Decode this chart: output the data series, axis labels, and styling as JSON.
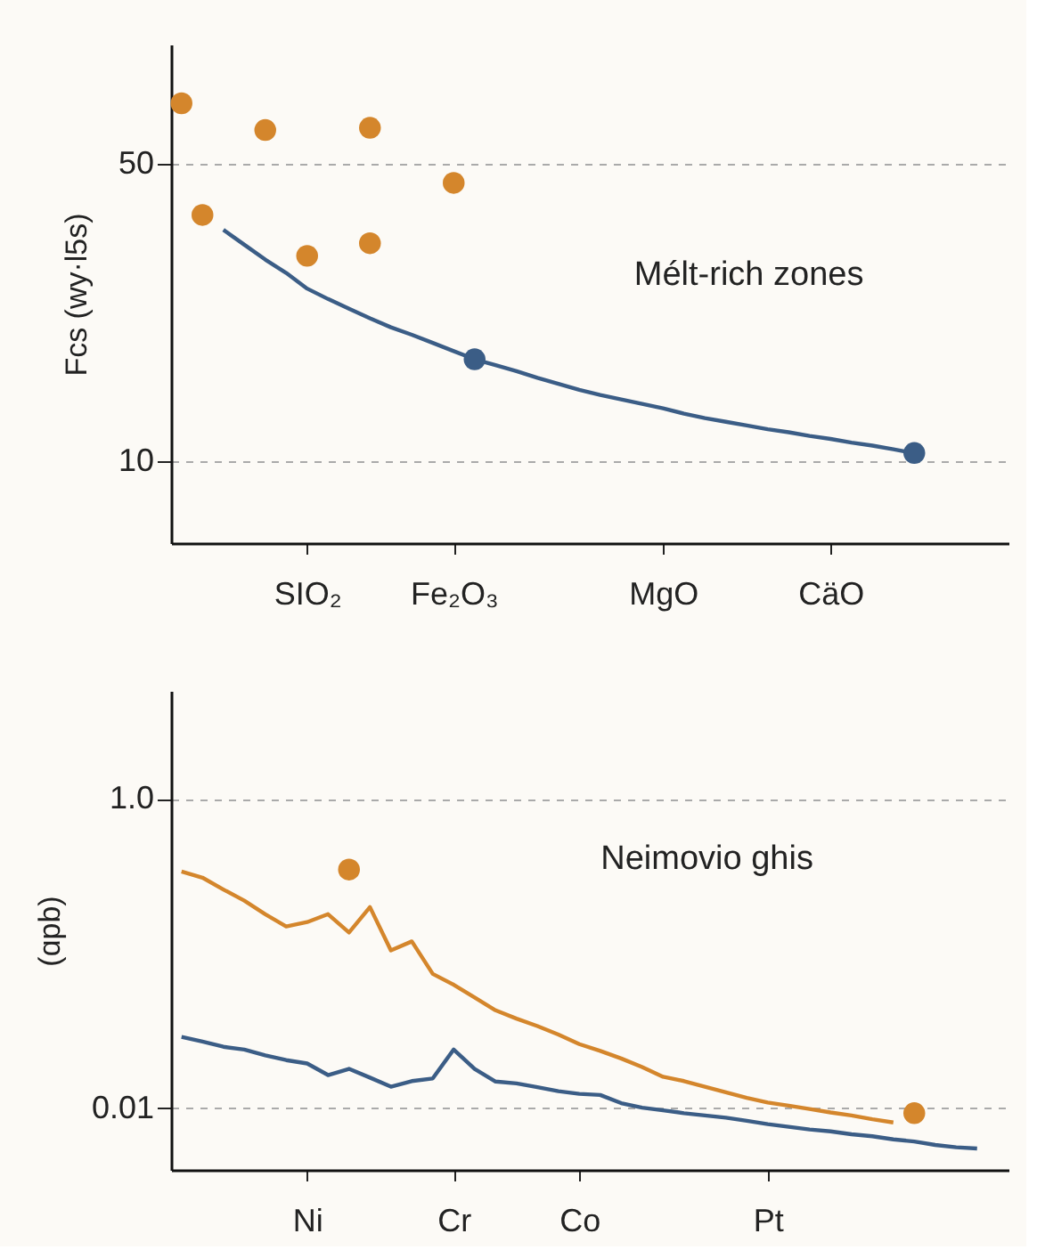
{
  "chart_data": [
    {
      "type": "scatter",
      "ylabel": "Fcs (wy·l5s)",
      "annotations": [
        "Mélt-rich zones"
      ],
      "categories": [
        null,
        null,
        null,
        null,
        null,
        null,
        "SIO₂",
        null,
        null,
        null,
        null,
        null,
        null,
        "Fe₂O₃",
        null,
        null,
        null,
        null,
        null,
        null,
        null,
        null,
        null,
        "MgO",
        null,
        null,
        null,
        null,
        null,
        null,
        null,
        "CäO",
        null,
        null,
        null,
        null,
        null,
        null,
        null,
        null
      ],
      "ylim": [
        -1,
        66
      ],
      "yticks": [
        10,
        50
      ],
      "grid": "y",
      "marker": "circle",
      "line_style": "solid",
      "series": [
        {
          "color": "#d4862c",
          "values": [
            58.1,
            null,
            null,
            null,
            54.5,
            null,
            null,
            null,
            null,
            54.8,
            null,
            null,
            null,
            47.4,
            null,
            null,
            null,
            null,
            null,
            null,
            null,
            null,
            null,
            null,
            null,
            null,
            null,
            null,
            null,
            null,
            null,
            null,
            null,
            null,
            null,
            null,
            null,
            null,
            null,
            null
          ]
        },
        {
          "color": "#d4862c",
          "values": [
            null,
            43.1,
            null,
            null,
            null,
            null,
            37.6,
            null,
            null,
            39.3,
            null,
            null,
            null,
            null,
            null,
            null,
            null,
            null,
            null,
            null,
            null,
            null,
            null,
            null,
            null,
            null,
            null,
            null,
            null,
            null,
            null,
            null,
            null,
            null,
            null,
            null,
            null,
            null,
            null,
            null
          ]
        },
        {
          "type": "line",
          "marker": "none",
          "color": "#3b5d86",
          "values": [
            null,
            null,
            41.1,
            39.1,
            37.1,
            35.3,
            33.2,
            31.8,
            30.5,
            29.2,
            28.0,
            27.0,
            25.9,
            24.8,
            23.7,
            22.9,
            22.1,
            21.2,
            20.4,
            19.6,
            18.9,
            18.3,
            17.7,
            17.1,
            16.4,
            15.8,
            15.3,
            14.8,
            14.3,
            13.9,
            13.4,
            13.0,
            12.5,
            12.1,
            11.6,
            11.1,
            null,
            null,
            null,
            null
          ]
        },
        {
          "color": "#3b5d86",
          "values": [
            null,
            null,
            null,
            null,
            null,
            null,
            null,
            null,
            null,
            null,
            null,
            null,
            null,
            null,
            23.7,
            null,
            null,
            null,
            null,
            null,
            null,
            null,
            null,
            null,
            null,
            null,
            null,
            null,
            null,
            null,
            null,
            null,
            null,
            null,
            null,
            11.1,
            null,
            null,
            null,
            null
          ]
        }
      ]
    },
    {
      "type": "line",
      "ylabel": "(ɑpb)",
      "annotations": [
        "Neimovio ghis"
      ],
      "categories": [
        null,
        null,
        null,
        null,
        null,
        null,
        "Ni",
        null,
        null,
        null,
        null,
        null,
        null,
        "Cr",
        null,
        null,
        null,
        null,
        null,
        "Co",
        null,
        null,
        null,
        null,
        null,
        null,
        null,
        null,
        "Pt",
        null,
        null,
        null,
        null,
        null,
        null,
        null,
        null,
        null,
        null,
        null
      ],
      "ylim": [
        0.004,
        5
      ],
      "log": "y",
      "yticks": [
        {
          "value": 0.01,
          "label": "0.01"
        },
        {
          "value": 1,
          "label": "1.0"
        }
      ],
      "grid": "y",
      "marker": "circle",
      "line_style": "solid",
      "series": [
        {
          "marker": "none",
          "color": "#d4862c",
          "values": [
            0.34,
            0.31,
            0.26,
            0.22,
            0.18,
            0.15,
            0.16,
            0.18,
            0.137,
            0.2,
            0.105,
            0.12,
            0.074,
            0.063,
            0.052,
            0.043,
            0.038,
            0.034,
            0.03,
            0.026,
            0.0235,
            0.021,
            0.0185,
            0.016,
            0.015,
            0.0138,
            0.0127,
            0.0117,
            0.0109,
            0.0104,
            0.0099,
            0.0094,
            0.009,
            0.0085,
            0.0081,
            null,
            null,
            null,
            null,
            null
          ]
        },
        {
          "type": "scatter",
          "color": "#d4862c",
          "values": [
            null,
            null,
            null,
            null,
            null,
            null,
            null,
            null,
            0.35,
            null,
            null,
            null,
            null,
            null,
            null,
            null,
            null,
            null,
            null,
            null,
            null,
            null,
            null,
            null,
            null,
            null,
            null,
            null,
            null,
            null,
            null,
            null,
            null,
            null,
            null,
            0.0093,
            null,
            null,
            null,
            null
          ]
        },
        {
          "marker": "none",
          "color": "#3b5d86",
          "values": [
            0.029,
            0.027,
            0.025,
            0.024,
            0.022,
            0.0205,
            0.0195,
            0.0164,
            0.018,
            0.0158,
            0.0138,
            0.015,
            0.0156,
            0.024,
            0.018,
            0.0149,
            0.0145,
            0.0137,
            0.0129,
            0.0124,
            0.0122,
            0.0108,
            0.0101,
            0.0097,
            0.0093,
            0.009,
            0.0087,
            0.0083,
            0.0079,
            0.0076,
            0.0073,
            0.0071,
            0.0068,
            0.0066,
            0.0063,
            0.0061,
            0.0058,
            0.0056,
            0.0055,
            null
          ]
        }
      ]
    }
  ]
}
